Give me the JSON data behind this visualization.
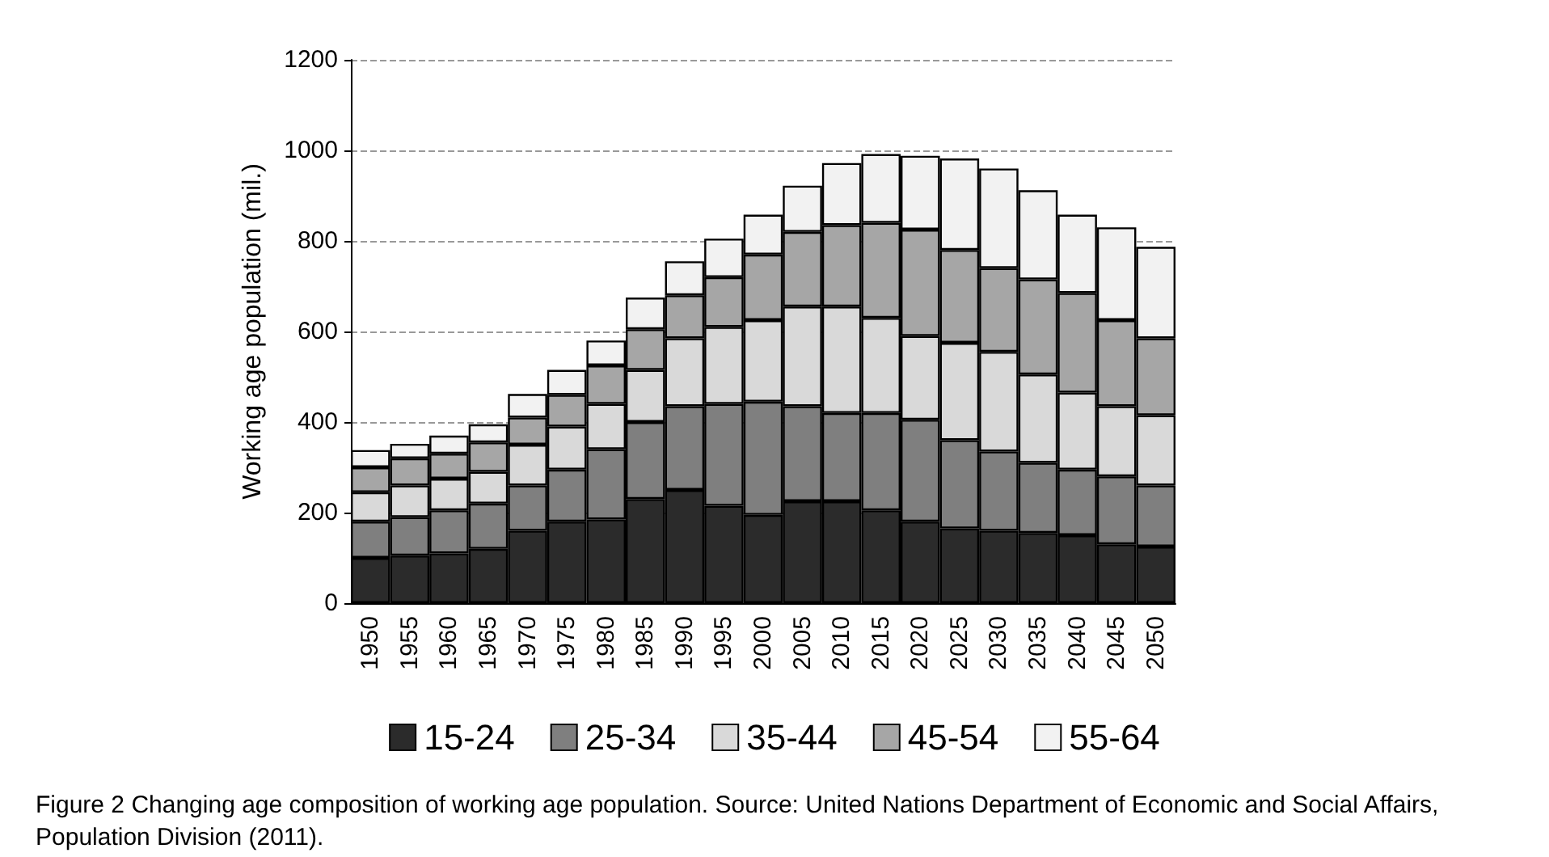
{
  "chart_data": {
    "type": "bar",
    "stacked": true,
    "title": "Figure 2 Changing age composition of working age population.",
    "annotations": [
      "Source: United Nations Department of Economic and Social Affairs, Population Division (2011)."
    ],
    "ylabel": "Working age population (mil.)",
    "categories": [
      "1950",
      "1955",
      "1960",
      "1965",
      "1970",
      "1975",
      "1980",
      "1985",
      "1990",
      "1995",
      "2000",
      "2005",
      "2010",
      "2015",
      "2020",
      "2025",
      "2030",
      "2035",
      "2040",
      "2045",
      "2050"
    ],
    "series": [
      {
        "name": "15-24",
        "color": "#2b2b2b",
        "values": [
          100,
          105,
          110,
          120,
          160,
          180,
          185,
          230,
          250,
          215,
          195,
          225,
          225,
          205,
          180,
          165,
          160,
          155,
          150,
          130,
          125
        ]
      },
      {
        "name": "25-34",
        "color": "#7f7f7f",
        "values": [
          80,
          85,
          95,
          100,
          100,
          115,
          155,
          170,
          185,
          225,
          250,
          210,
          195,
          215,
          225,
          195,
          175,
          155,
          145,
          150,
          135
        ]
      },
      {
        "name": "35-44",
        "color": "#d9d9d9",
        "values": [
          65,
          70,
          70,
          70,
          90,
          95,
          100,
          115,
          150,
          170,
          180,
          220,
          235,
          210,
          185,
          215,
          220,
          195,
          170,
          155,
          155
        ]
      },
      {
        "name": "45-54",
        "color": "#a6a6a6",
        "values": [
          55,
          60,
          55,
          65,
          60,
          70,
          85,
          90,
          95,
          110,
          145,
          165,
          180,
          210,
          235,
          205,
          185,
          210,
          220,
          190,
          170
        ]
      },
      {
        "name": "55-64",
        "color": "#f2f2f2",
        "values": [
          38,
          32,
          40,
          40,
          52,
          55,
          55,
          70,
          75,
          85,
          88,
          102,
          137,
          152,
          163,
          202,
          220,
          197,
          173,
          205,
          202
        ]
      }
    ],
    "ylim": [
      0,
      1200
    ],
    "yticks": [
      0,
      200,
      400,
      600,
      800,
      1000,
      1200
    ],
    "grid": "y",
    "legend": "bottom"
  }
}
